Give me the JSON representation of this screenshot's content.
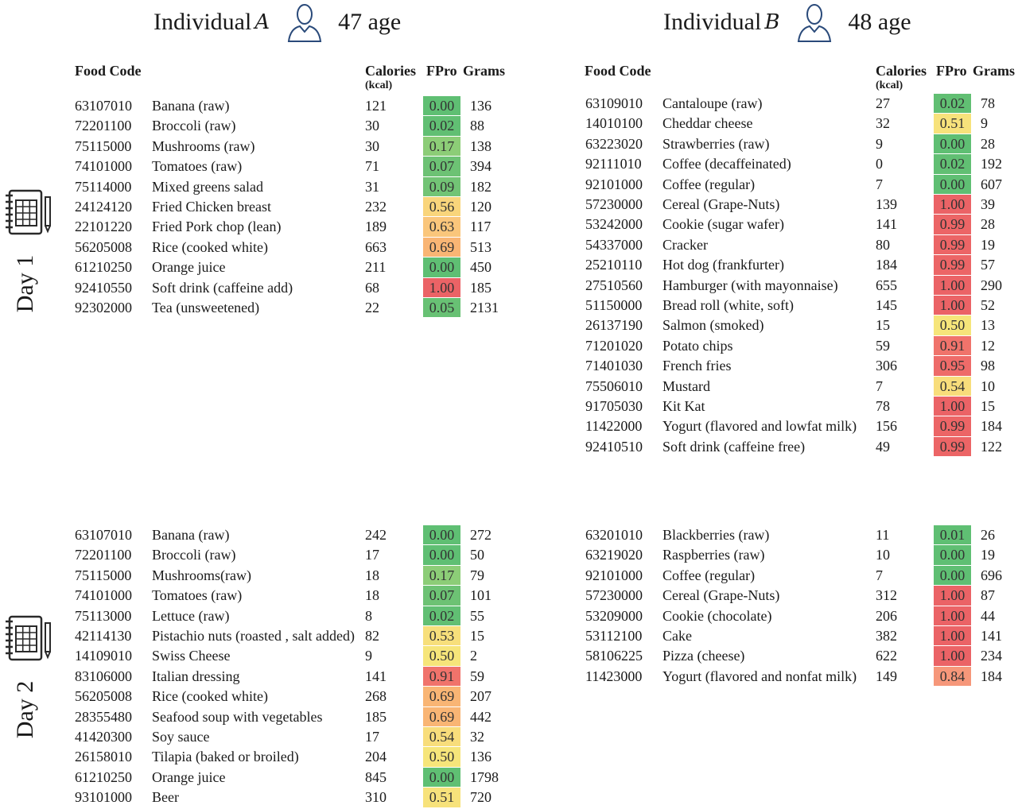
{
  "individuals": {
    "a": {
      "prefix": "Individual",
      "letter": "A",
      "age": "47 age"
    },
    "b": {
      "prefix": "Individual",
      "letter": "B",
      "age": "48 age"
    }
  },
  "days": {
    "day1": "Day 1",
    "day2": "Day 2"
  },
  "columns": {
    "food_code": "Food Code",
    "calories": "Calories",
    "calories_unit": "(kcal)",
    "fpro": "FPro",
    "grams": "Grams"
  },
  "icons": {
    "person": "person-outline-icon",
    "notebook": "notebook-grid-icon"
  },
  "fpro_colors": {
    "0.00": "#5fbf73",
    "0.01": "#5fbf73",
    "0.02": "#61bf73",
    "0.05": "#68c174",
    "0.07": "#6dc274",
    "0.09": "#72c475",
    "0.17": "#8ccd77",
    "0.50": "#f6e57a",
    "0.51": "#f7e27b",
    "0.53": "#f7df7b",
    "0.54": "#f8dd7b",
    "0.56": "#f9d57b",
    "0.63": "#fac67b",
    "0.69": "#f9b574",
    "0.84": "#f6977a",
    "0.91": "#f0736b",
    "0.95": "#ee6b69",
    "0.99": "#ec6566",
    "1.00": "#eb6366"
  },
  "tables": {
    "a_day1": [
      {
        "code": "63107010",
        "name": "Banana (raw)",
        "calories": "121",
        "fpro": "0.00",
        "grams": "136"
      },
      {
        "code": "72201100",
        "name": "Broccoli (raw)",
        "calories": "30",
        "fpro": "0.02",
        "grams": "88"
      },
      {
        "code": "75115000",
        "name": "Mushrooms (raw)",
        "calories": "30",
        "fpro": "0.17",
        "grams": "138"
      },
      {
        "code": "74101000",
        "name": "Tomatoes (raw)",
        "calories": "71",
        "fpro": "0.07",
        "grams": "394"
      },
      {
        "code": "75114000",
        "name": "Mixed greens salad",
        "calories": "31",
        "fpro": "0.09",
        "grams": "182"
      },
      {
        "code": "24124120",
        "name": "Fried Chicken breast",
        "calories": "232",
        "fpro": "0.56",
        "grams": "120"
      },
      {
        "code": "22101220",
        "name": "Fried Pork chop (lean)",
        "calories": "189",
        "fpro": "0.63",
        "grams": "117"
      },
      {
        "code": "56205008",
        "name": "Rice (cooked white)",
        "calories": "663",
        "fpro": "0.69",
        "grams": "513"
      },
      {
        "code": "61210250",
        "name": "Orange juice",
        "calories": "211",
        "fpro": "0.00",
        "grams": "450"
      },
      {
        "code": "92410550",
        "name": "Soft drink (caffeine add)",
        "calories": "68",
        "fpro": "1.00",
        "grams": "185"
      },
      {
        "code": "92302000",
        "name": "Tea (unsweetened)",
        "calories": "22",
        "fpro": "0.05",
        "grams": "2131"
      }
    ],
    "b_day1": [
      {
        "code": "63109010",
        "name": "Cantaloupe (raw)",
        "calories": "27",
        "fpro": "0.02",
        "grams": "78"
      },
      {
        "code": "14010100",
        "name": "Cheddar cheese",
        "calories": "32",
        "fpro": "0.51",
        "grams": "9"
      },
      {
        "code": "63223020",
        "name": "Strawberries (raw)",
        "calories": "9",
        "fpro": "0.00",
        "grams": "28"
      },
      {
        "code": "92111010",
        "name": "Coffee (decaffeinated)",
        "calories": "0",
        "fpro": "0.02",
        "grams": "192"
      },
      {
        "code": "92101000",
        "name": "Coffee (regular)",
        "calories": "7",
        "fpro": "0.00",
        "grams": "607"
      },
      {
        "code": "57230000",
        "name": "Cereal (Grape-Nuts)",
        "calories": "139",
        "fpro": "1.00",
        "grams": "39"
      },
      {
        "code": "53242000",
        "name": "Cookie (sugar wafer)",
        "calories": "141",
        "fpro": "0.99",
        "grams": "28"
      },
      {
        "code": "54337000",
        "name": "Cracker",
        "calories": "80",
        "fpro": "0.99",
        "grams": "19"
      },
      {
        "code": "25210110",
        "name": "Hot dog (frankfurter)",
        "calories": "184",
        "fpro": "0.99",
        "grams": "57"
      },
      {
        "code": "27510560",
        "name": "Hamburger (with mayonnaise)",
        "calories": "655",
        "fpro": "1.00",
        "grams": "290"
      },
      {
        "code": "51150000",
        "name": "Bread roll (white, soft)",
        "calories": "145",
        "fpro": "1.00",
        "grams": "52"
      },
      {
        "code": "26137190",
        "name": "Salmon (smoked)",
        "calories": "15",
        "fpro": "0.50",
        "grams": "13"
      },
      {
        "code": "71201020",
        "name": "Potato chips",
        "calories": "59",
        "fpro": "0.91",
        "grams": "12"
      },
      {
        "code": "71401030",
        "name": "French fries",
        "calories": "306",
        "fpro": "0.95",
        "grams": "98"
      },
      {
        "code": "75506010",
        "name": "Mustard",
        "calories": "7",
        "fpro": "0.54",
        "grams": "10"
      },
      {
        "code": "91705030",
        "name": "Kit Kat",
        "calories": "78",
        "fpro": "1.00",
        "grams": "15"
      },
      {
        "code": "11422000",
        "name": "Yogurt (flavored and lowfat milk)",
        "calories": "156",
        "fpro": "0.99",
        "grams": "184"
      },
      {
        "code": "92410510",
        "name": "Soft drink (caffeine free)",
        "calories": "49",
        "fpro": "0.99",
        "grams": "122"
      }
    ],
    "a_day2": [
      {
        "code": "63107010",
        "name": "Banana (raw)",
        "calories": "242",
        "fpro": "0.00",
        "grams": "272"
      },
      {
        "code": "72201100",
        "name": "Broccoli (raw)",
        "calories": "17",
        "fpro": "0.00",
        "grams": "50"
      },
      {
        "code": "75115000",
        "name": "Mushrooms(raw)",
        "calories": "18",
        "fpro": "0.17",
        "grams": "79"
      },
      {
        "code": "74101000",
        "name": "Tomatoes (raw)",
        "calories": "18",
        "fpro": "0.07",
        "grams": "101"
      },
      {
        "code": "75113000",
        "name": "Lettuce (raw)",
        "calories": "8",
        "fpro": "0.02",
        "grams": "55"
      },
      {
        "code": "42114130",
        "name": "Pistachio nuts (roasted , salt added)",
        "calories": "82",
        "fpro": "0.53",
        "grams": "15"
      },
      {
        "code": "14109010",
        "name": "Swiss Cheese",
        "calories": "9",
        "fpro": "0.50",
        "grams": "2"
      },
      {
        "code": "83106000",
        "name": "Italian dressing",
        "calories": "141",
        "fpro": "0.91",
        "grams": "59"
      },
      {
        "code": "56205008",
        "name": "Rice (cooked white)",
        "calories": "268",
        "fpro": "0.69",
        "grams": "207"
      },
      {
        "code": "28355480",
        "name": "Seafood soup with vegetables",
        "calories": "185",
        "fpro": "0.69",
        "grams": "442"
      },
      {
        "code": "41420300",
        "name": "Soy sauce",
        "calories": "17",
        "fpro": "0.54",
        "grams": "32"
      },
      {
        "code": "26158010",
        "name": "Tilapia (baked or broiled)",
        "calories": "204",
        "fpro": "0.50",
        "grams": "136"
      },
      {
        "code": "61210250",
        "name": "Orange juice",
        "calories": "845",
        "fpro": "0.00",
        "grams": "1798"
      },
      {
        "code": "93101000",
        "name": "Beer",
        "calories": "310",
        "fpro": "0.51",
        "grams": "720"
      }
    ],
    "b_day2": [
      {
        "code": "63201010",
        "name": "Blackberries (raw)",
        "calories": "11",
        "fpro": "0.01",
        "grams": "26"
      },
      {
        "code": "63219020",
        "name": "Raspberries (raw)",
        "calories": "10",
        "fpro": "0.00",
        "grams": "19"
      },
      {
        "code": "92101000",
        "name": "Coffee (regular)",
        "calories": "7",
        "fpro": "0.00",
        "grams": "696"
      },
      {
        "code": "57230000",
        "name": "Cereal (Grape-Nuts)",
        "calories": "312",
        "fpro": "1.00",
        "grams": "87"
      },
      {
        "code": "53209000",
        "name": "Cookie (chocolate)",
        "calories": "206",
        "fpro": "1.00",
        "grams": "44"
      },
      {
        "code": "53112100",
        "name": "Cake",
        "calories": "382",
        "fpro": "1.00",
        "grams": "141"
      },
      {
        "code": "58106225",
        "name": "Pizza (cheese)",
        "calories": "622",
        "fpro": "1.00",
        "grams": "234"
      },
      {
        "code": "11423000",
        "name": "Yogurt (flavored and nonfat milk)",
        "calories": "149",
        "fpro": "0.84",
        "grams": "184"
      }
    ]
  }
}
